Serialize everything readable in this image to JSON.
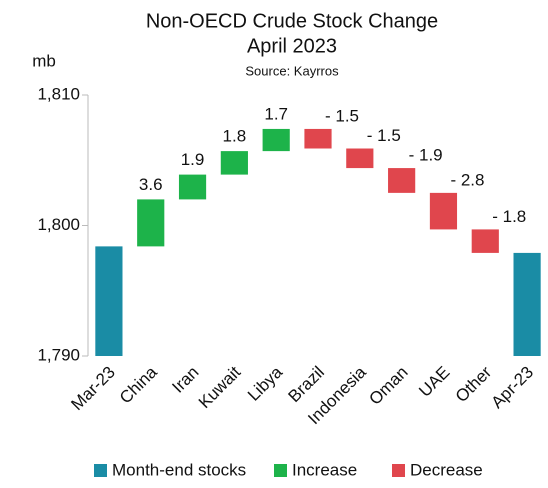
{
  "chart_data": {
    "type": "waterfall",
    "title": "Non-OECD Crude Stock Change",
    "subtitle": "April 2023",
    "source": "Source: Kayrros",
    "ylabel": "mb",
    "categories": [
      "Mar-23",
      "China",
      "Iran",
      "Kuwait",
      "Libya",
      "Brazil",
      "Indonesia",
      "Oman",
      "UAE",
      "Other",
      "Apr-23"
    ],
    "series": [
      {
        "name": "Month-end stocks",
        "color": "#1a8ca5",
        "values": [
          1798.4,
          null,
          null,
          null,
          null,
          null,
          null,
          null,
          null,
          null,
          1797.9
        ]
      },
      {
        "name": "Increase",
        "color": "#1db34a",
        "values": [
          null,
          3.6,
          1.9,
          1.8,
          1.7,
          null,
          null,
          null,
          null,
          null,
          null
        ]
      },
      {
        "name": "Decrease",
        "color": "#e0464d",
        "values": [
          null,
          null,
          null,
          null,
          null,
          -1.5,
          -1.5,
          -1.9,
          -2.8,
          -1.8,
          null
        ],
        "value_labels": [
          null,
          null,
          null,
          null,
          null,
          "- 1.5",
          "- 1.5",
          "- 1.9",
          "- 2.8",
          "- 1.8",
          null
        ]
      }
    ],
    "ylim": [
      1790,
      1810
    ],
    "yticks": [
      {
        "value": 1790,
        "label": "1,790"
      },
      {
        "value": 1800,
        "label": "1,800"
      },
      {
        "value": 1810,
        "label": "1,810"
      }
    ],
    "legend": "bottom"
  }
}
